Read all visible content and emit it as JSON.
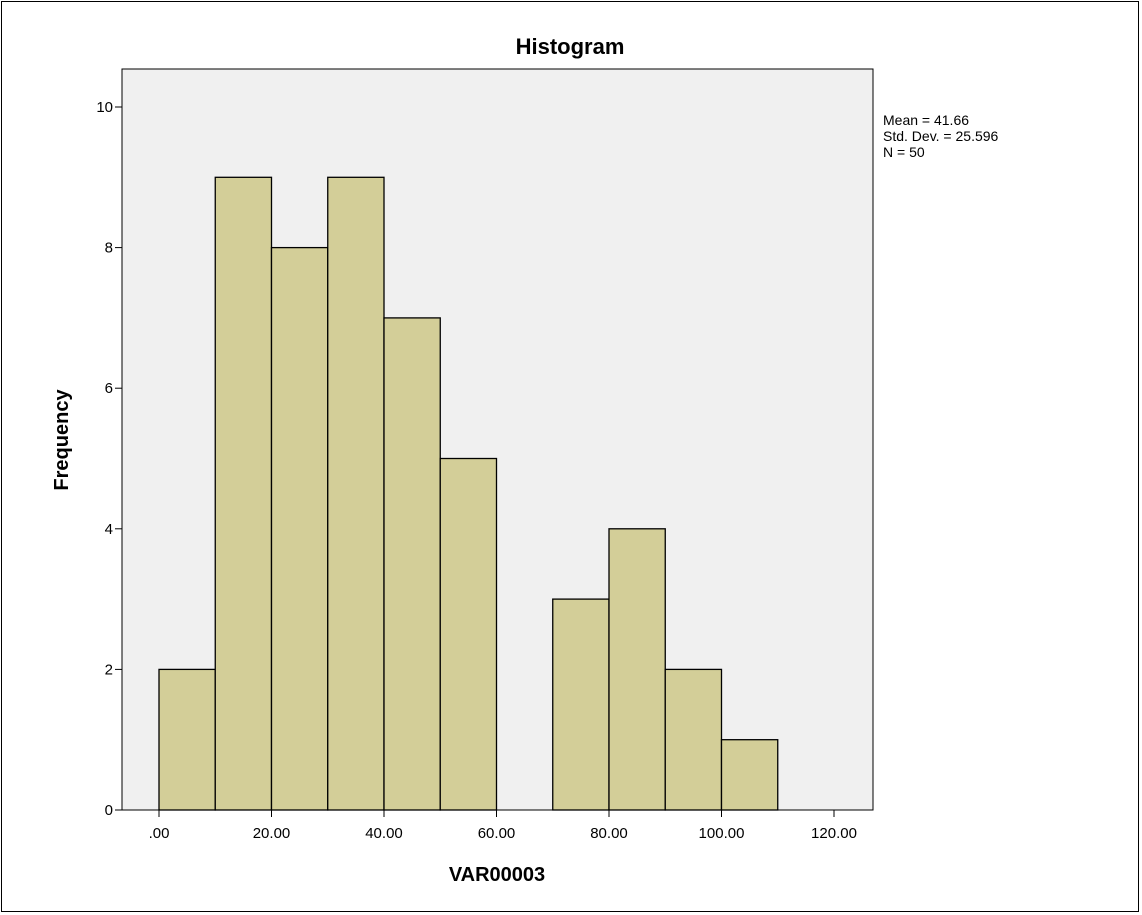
{
  "chart_data": {
    "type": "bar",
    "subtype": "histogram",
    "title": "Histogram",
    "xlabel": "VAR00003",
    "ylabel": "Frequency",
    "bin_width": 10,
    "bins": [
      {
        "start": 0,
        "end": 10,
        "count": 2
      },
      {
        "start": 10,
        "end": 20,
        "count": 9
      },
      {
        "start": 20,
        "end": 30,
        "count": 8
      },
      {
        "start": 30,
        "end": 40,
        "count": 9
      },
      {
        "start": 40,
        "end": 50,
        "count": 7
      },
      {
        "start": 50,
        "end": 60,
        "count": 5
      },
      {
        "start": 60,
        "end": 70,
        "count": 0
      },
      {
        "start": 70,
        "end": 80,
        "count": 3
      },
      {
        "start": 80,
        "end": 90,
        "count": 4
      },
      {
        "start": 90,
        "end": 100,
        "count": 2
      },
      {
        "start": 100,
        "end": 110,
        "count": 1
      }
    ],
    "xlim": [
      -7.5,
      127.5
    ],
    "ylim": [
      0,
      10.5
    ],
    "x_ticks": [
      0,
      20,
      40,
      60,
      80,
      100,
      120
    ],
    "x_tick_labels": [
      ".00",
      "20.00",
      "40.00",
      "60.00",
      "80.00",
      "100.00",
      "120.00"
    ],
    "y_ticks": [
      0,
      2,
      4,
      6,
      8,
      10
    ],
    "y_tick_labels": [
      "0",
      "2",
      "4",
      "6",
      "8",
      "10"
    ],
    "grid": false,
    "stats": {
      "mean": "Mean = 41.66",
      "std_dev": "Std. Dev. = 25.596",
      "n": "N = 50"
    },
    "colors": {
      "bar_fill": "#d3ce98",
      "bar_stroke": "#000000",
      "plot_background": "#f0f0f0",
      "page_background": "#ffffff"
    }
  }
}
